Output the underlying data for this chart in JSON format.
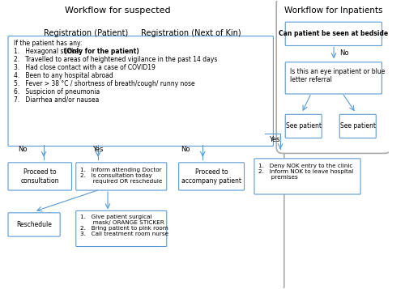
{
  "title": "Workflow for suspected",
  "inpatient_title": "Workflow for Inpatients",
  "reg_patient_label": "Registration (Patient)",
  "reg_nok_label": "Registration (Next of Kin)",
  "outer_box_color": "#d0e8f0",
  "box_edge_color": "#5b9bd5",
  "background": "#ffffff",
  "text_color": "#000000",
  "arrow_color": "#5b9bd5",
  "boxes": {
    "criteria_box": {
      "text": "If the patient has any:\n1.   Hexagonal sticker (Only for the patient)\n2.   Travelled to areas of heightened vigilance in the past 14 days\n3.   Had close contact with a case of COVID19\n4.   Been to any hospital abroad\n5.   Fever > 38 °C / shortness of breath/cough/ runny nose\n6.   Suspicion of pneumonia\n7.   Diarrhea and/or nausea"
    },
    "proceed_consult": {
      "text": "Proceed to\nconsultation"
    },
    "inform_doctor": {
      "text": "1.   Inform attending Doctor\n2.   Is consultation today\n       required OR reschedule"
    },
    "proceed_accompany": {
      "text": "Proceed to\naccompany patient"
    },
    "reschedule": {
      "text": "Reschedule"
    },
    "give_mask": {
      "text": "1.   Give patient surgical\n       mask/ ORANGE STICKER\n2.   Bring patient to pink room\n3.   Call treatment room nurse"
    },
    "can_patient": {
      "text": "Can patient be seen at bedside"
    },
    "eye_inpatient": {
      "text": "Is this an eye inpatient or blue\nletter referral"
    },
    "see_patient_left": {
      "text": "See patient"
    },
    "see_patient_right": {
      "text": "See patient"
    },
    "deny_nok": {
      "text": "1.   Deny NOK entry to the clinic\n2.   Inform NOK to leave hospital\n       premises"
    }
  }
}
